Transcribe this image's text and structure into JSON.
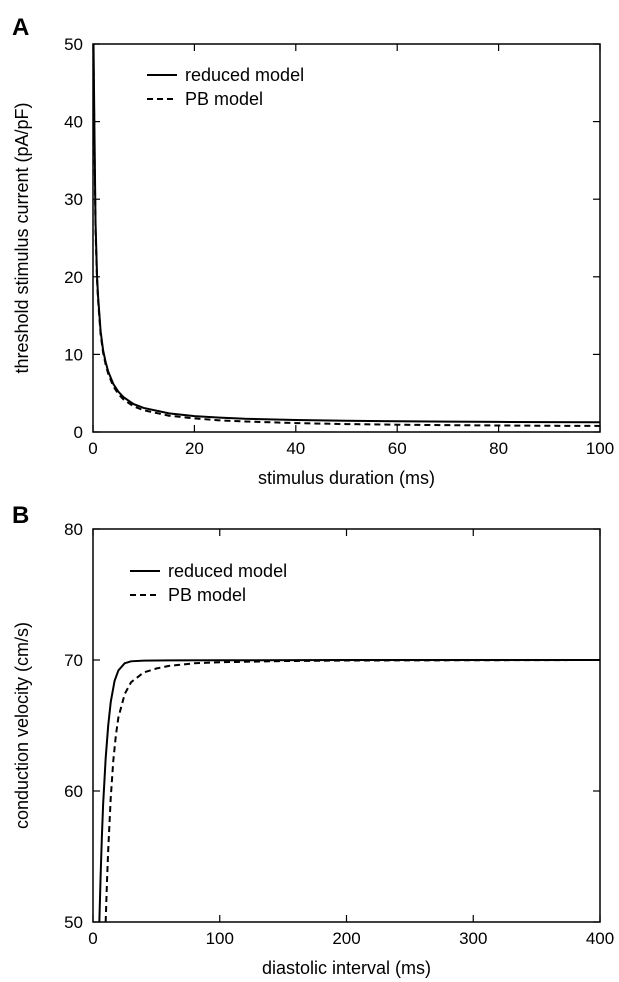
{
  "chart_data": [
    {
      "panel_label": "A",
      "type": "line",
      "xlabel": "stimulus duration (ms)",
      "ylabel": "threshold stimulus current (pA/pF)",
      "xlim": [
        0,
        100
      ],
      "ylim": [
        0,
        50
      ],
      "xticks": [
        0,
        20,
        40,
        60,
        80,
        100
      ],
      "yticks": [
        0,
        10,
        20,
        30,
        40,
        50
      ],
      "legend_position": "top-left",
      "grid": false,
      "series": [
        {
          "name": "reduced model",
          "style": "solid",
          "x": [
            0.1,
            0.3,
            0.5,
            0.8,
            1,
            1.5,
            2,
            2.5,
            3,
            4,
            5,
            6,
            8,
            10,
            15,
            20,
            25,
            30,
            40,
            50,
            60,
            70,
            80,
            90,
            100
          ],
          "y": [
            50,
            38,
            27,
            20,
            17.5,
            13,
            10.5,
            9,
            7.8,
            6.2,
            5.2,
            4.5,
            3.6,
            3.1,
            2.4,
            2.05,
            1.85,
            1.7,
            1.55,
            1.45,
            1.38,
            1.33,
            1.3,
            1.28,
            1.26
          ]
        },
        {
          "name": "PB model",
          "style": "dashed",
          "x": [
            0.1,
            0.3,
            0.5,
            0.8,
            1,
            1.5,
            2,
            2.5,
            3,
            4,
            5,
            6,
            8,
            10,
            15,
            20,
            25,
            30,
            40,
            50,
            60,
            70,
            80,
            90,
            100
          ],
          "y": [
            48,
            36,
            26,
            19.5,
            17,
            12.6,
            10.2,
            8.7,
            7.5,
            5.9,
            4.9,
            4.2,
            3.3,
            2.8,
            2.1,
            1.75,
            1.5,
            1.35,
            1.15,
            1.02,
            0.94,
            0.88,
            0.84,
            0.8,
            0.78
          ]
        }
      ]
    },
    {
      "panel_label": "B",
      "type": "line",
      "xlabel": "diastolic interval (ms)",
      "ylabel": "conduction velocity (cm/s)",
      "xlim": [
        0,
        400
      ],
      "ylim": [
        50,
        80
      ],
      "xticks": [
        0,
        100,
        200,
        300,
        400
      ],
      "yticks": [
        50,
        60,
        70,
        80
      ],
      "legend_position": "top-left",
      "grid": false,
      "series": [
        {
          "name": "reduced model",
          "style": "solid",
          "x": [
            5,
            6,
            7,
            8,
            10,
            12,
            14,
            17,
            20,
            25,
            30,
            40,
            60,
            100,
            200,
            300,
            400
          ],
          "y": [
            50,
            53.5,
            56.5,
            59,
            62.5,
            65,
            66.8,
            68.4,
            69.2,
            69.75,
            69.9,
            69.95,
            69.97,
            69.98,
            70,
            70,
            70
          ]
        },
        {
          "name": "PB model",
          "style": "dashed",
          "x": [
            10,
            11,
            12,
            14,
            16,
            18,
            20,
            25,
            30,
            40,
            50,
            60,
            80,
            100,
            150,
            200,
            300,
            400
          ],
          "y": [
            50,
            53,
            55.5,
            59.5,
            62.3,
            64.2,
            65.6,
            67.4,
            68.3,
            69.05,
            69.35,
            69.55,
            69.75,
            69.83,
            69.92,
            69.96,
            69.98,
            70
          ]
        }
      ]
    }
  ]
}
